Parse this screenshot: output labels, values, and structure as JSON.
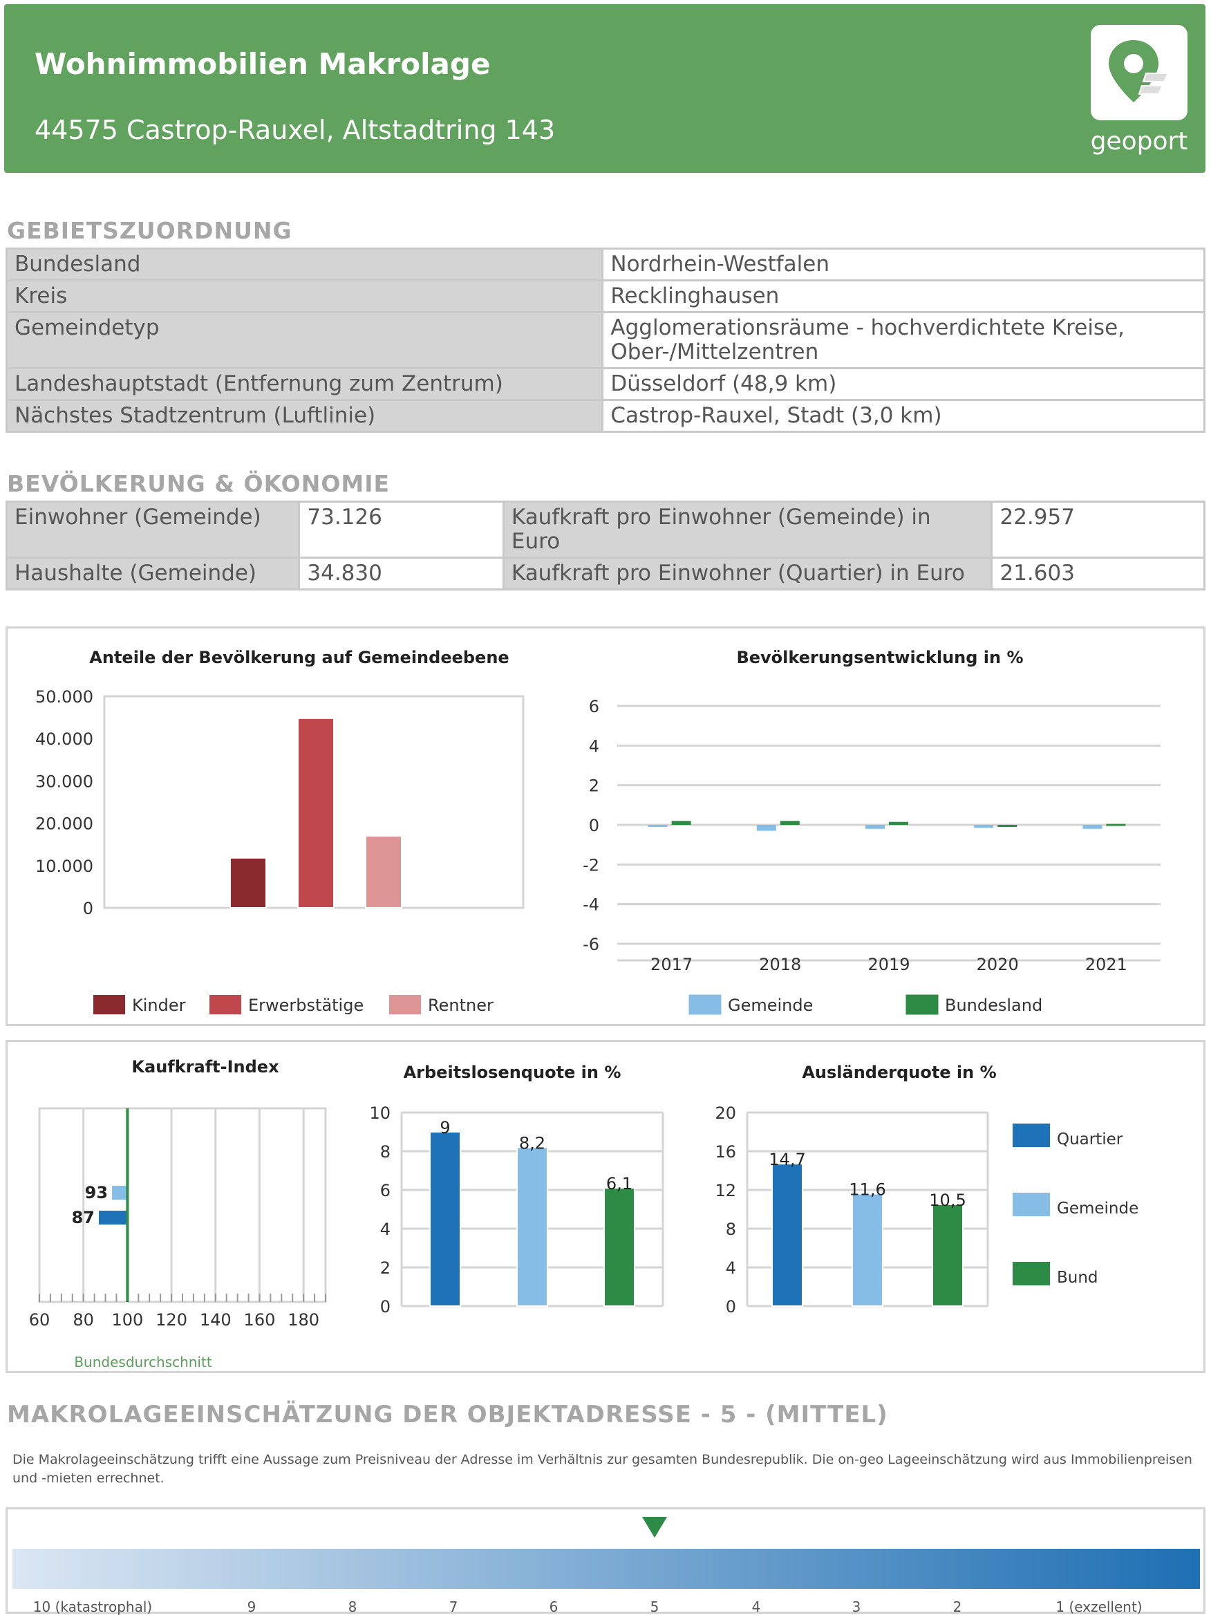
{
  "header": {
    "title": "Wohnimmobilien Makrolage",
    "address": "44575 Castrop-Rauxel, Altstadtring 143",
    "logo_text": "geoport",
    "logo_icon": "location-pin-icon",
    "color": "#61a35e"
  },
  "gebiet": {
    "title": "GEBIETSZUORDNUNG",
    "rows": [
      {
        "label": "Bundesland",
        "value": "Nordrhein-Westfalen"
      },
      {
        "label": "Kreis",
        "value": "Recklinghausen"
      },
      {
        "label": "Gemeindetyp",
        "value": "Agglomerationsräume - hochverdichtete Kreise, Ober-/Mittelzentren"
      },
      {
        "label": "Landeshauptstadt (Entfernung zum Zentrum)",
        "value": "Düsseldorf (48,9 km)"
      },
      {
        "label": "Nächstes Stadtzentrum (Luftlinie)",
        "value": "Castrop-Rauxel, Stadt (3,0 km)"
      }
    ]
  },
  "bevoelkerung": {
    "title": "BEVÖLKERUNG & ÖKONOMIE",
    "einwohner_label": "Einwohner (Gemeinde)",
    "einwohner_value": "73.126",
    "haushalte_label": "Haushalte (Gemeinde)",
    "haushalte_value": "34.830",
    "kaufkraft_gem_label": "Kaufkraft pro Einwohner (Gemeinde) in Euro",
    "kaufkraft_gem_value": "22.957",
    "kaufkraft_q_label": "Kaufkraft pro Einwohner (Quartier) in Euro",
    "kaufkraft_q_value": "21.603"
  },
  "chart_data": [
    {
      "id": "anteile",
      "type": "bar",
      "title": "Anteile der Bevölkerung auf Gemeindeebene",
      "ylim": [
        0,
        50000
      ],
      "yticks": [
        "0",
        "10.000",
        "20.000",
        "30.000",
        "40.000",
        "50.000"
      ],
      "series": [
        {
          "name": "Kinder",
          "value": 11800,
          "color": "#8b2a2e"
        },
        {
          "name": "Erwerbstätige",
          "value": 44800,
          "color": "#c0474b"
        },
        {
          "name": "Rentner",
          "value": 17000,
          "color": "#dc9494"
        }
      ]
    },
    {
      "id": "entwicklung",
      "type": "bar",
      "title": "Bevölkerungsentwicklung in %",
      "ylim": [
        -6,
        6
      ],
      "yticks": [
        "-6",
        "-4",
        "-2",
        "0",
        "2",
        "4",
        "6"
      ],
      "categories": [
        "2017",
        "2018",
        "2019",
        "2020",
        "2021"
      ],
      "series": [
        {
          "name": "Gemeinde",
          "color": "#86bde6",
          "values": [
            -0.1,
            -0.3,
            -0.2,
            -0.15,
            -0.2
          ]
        },
        {
          "name": "Bundesland",
          "color": "#2e8b46",
          "values": [
            0.2,
            0.2,
            0.15,
            -0.1,
            0.05
          ]
        }
      ]
    },
    {
      "id": "kaufkraftindex",
      "type": "bar",
      "title": "Kaufkraft-Index",
      "xlim": [
        60,
        190
      ],
      "xticks": [
        "60",
        "80",
        "100",
        "120",
        "140",
        "160",
        "180"
      ],
      "reference": 100,
      "reference_label": "Bundesdurchschnitt",
      "bars": [
        {
          "label": "93",
          "value": 93,
          "color": "#86bde6"
        },
        {
          "label": "87",
          "value": 87,
          "color": "#1e73b8"
        }
      ]
    },
    {
      "id": "arbeitslosen",
      "type": "bar",
      "title": "Arbeitslosenquote in %",
      "ylim": [
        0,
        10
      ],
      "yticks": [
        "0",
        "2",
        "4",
        "6",
        "8",
        "10"
      ],
      "series": [
        {
          "name": "Quartier",
          "value": 9,
          "label": "9",
          "color": "#1e73b8"
        },
        {
          "name": "Gemeinde",
          "value": 8.2,
          "label": "8,2",
          "color": "#86bde6"
        },
        {
          "name": "Bund",
          "value": 6.1,
          "label": "6,1",
          "color": "#2e8b46"
        }
      ]
    },
    {
      "id": "auslaender",
      "type": "bar",
      "title": "Ausländerquote in %",
      "ylim": [
        0,
        20
      ],
      "yticks": [
        "0",
        "4",
        "8",
        "12",
        "16",
        "20"
      ],
      "series": [
        {
          "name": "Quartier",
          "value": 14.7,
          "label": "14,7",
          "color": "#1e73b8"
        },
        {
          "name": "Gemeinde",
          "value": 11.6,
          "label": "11,6",
          "color": "#86bde6"
        },
        {
          "name": "Bund",
          "value": 10.5,
          "label": "10,5",
          "color": "#2e8b46"
        }
      ]
    }
  ],
  "makrolage": {
    "title": "MAKROLAGEEINSCHÄTZUNG DER OBJEKTADRESSE - 5 - (MITTEL)",
    "description": "Die Makrolageeinschätzung trifft eine Aussage zum  Preisniveau der Adresse im Verhältnis zur gesamten Bundesrepublik. Die on-geo Lageeinschätzung wird aus Immobilienpreisen und -mieten errechnet.",
    "scale_labels": [
      "10 (katastrophal)",
      "9",
      "8",
      "7",
      "6",
      "5",
      "4",
      "3",
      "2",
      "1 (exzellent)"
    ],
    "selected": 5,
    "marker_color": "#2e8b46"
  }
}
